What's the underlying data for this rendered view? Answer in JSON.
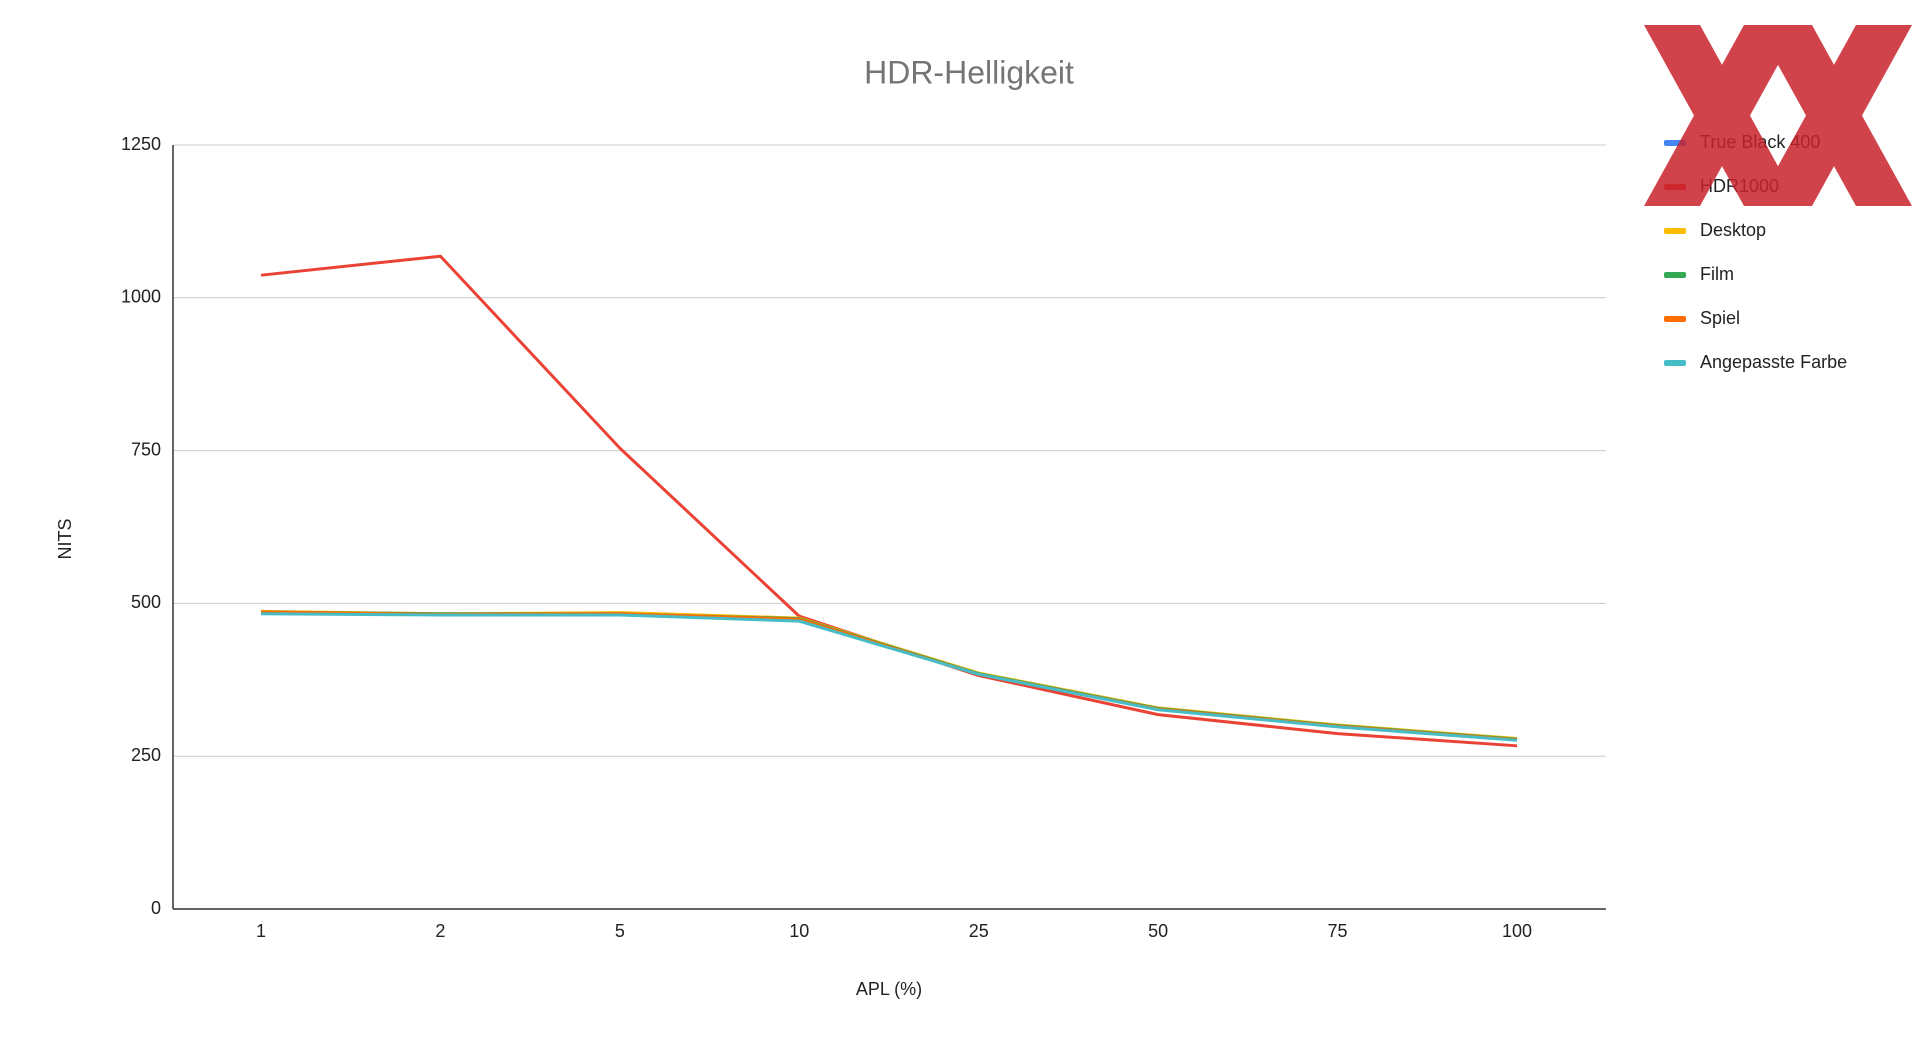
{
  "chart_data": {
    "type": "line",
    "title": "HDR-Helligkeit",
    "x_label": "APL (%)",
    "y_label": "NITS",
    "categories": [
      "1",
      "2",
      "5",
      "10",
      "25",
      "50",
      "75",
      "100"
    ],
    "ylim": [
      0,
      1250
    ],
    "yticks": [
      0,
      250,
      500,
      750,
      1000,
      1250
    ],
    "grid": true,
    "series": [
      {
        "name": "True Black 400",
        "color": "#4285f4",
        "values": [
          485,
          482,
          482,
          474,
          384,
          327,
          299,
          277
        ]
      },
      {
        "name": "HDR1000",
        "color": "#ea4335",
        "values": [
          1037,
          1068,
          754,
          479,
          382,
          318,
          287,
          267
        ]
      },
      {
        "name": "Desktop",
        "color": "#fbbc04",
        "values": [
          487,
          483,
          485,
          476,
          386,
          329,
          301,
          279
        ]
      },
      {
        "name": "Film",
        "color": "#34a853",
        "values": [
          486,
          483,
          483,
          475,
          385,
          328,
          300,
          278
        ]
      },
      {
        "name": "Spiel",
        "color": "#ff6d01",
        "values": [
          486,
          482,
          483,
          474,
          384,
          327,
          299,
          277
        ]
      },
      {
        "name": "Angepasste Farbe",
        "color": "#46bdc6",
        "values": [
          483,
          481,
          481,
          471,
          384,
          326,
          298,
          276
        ]
      }
    ]
  }
}
